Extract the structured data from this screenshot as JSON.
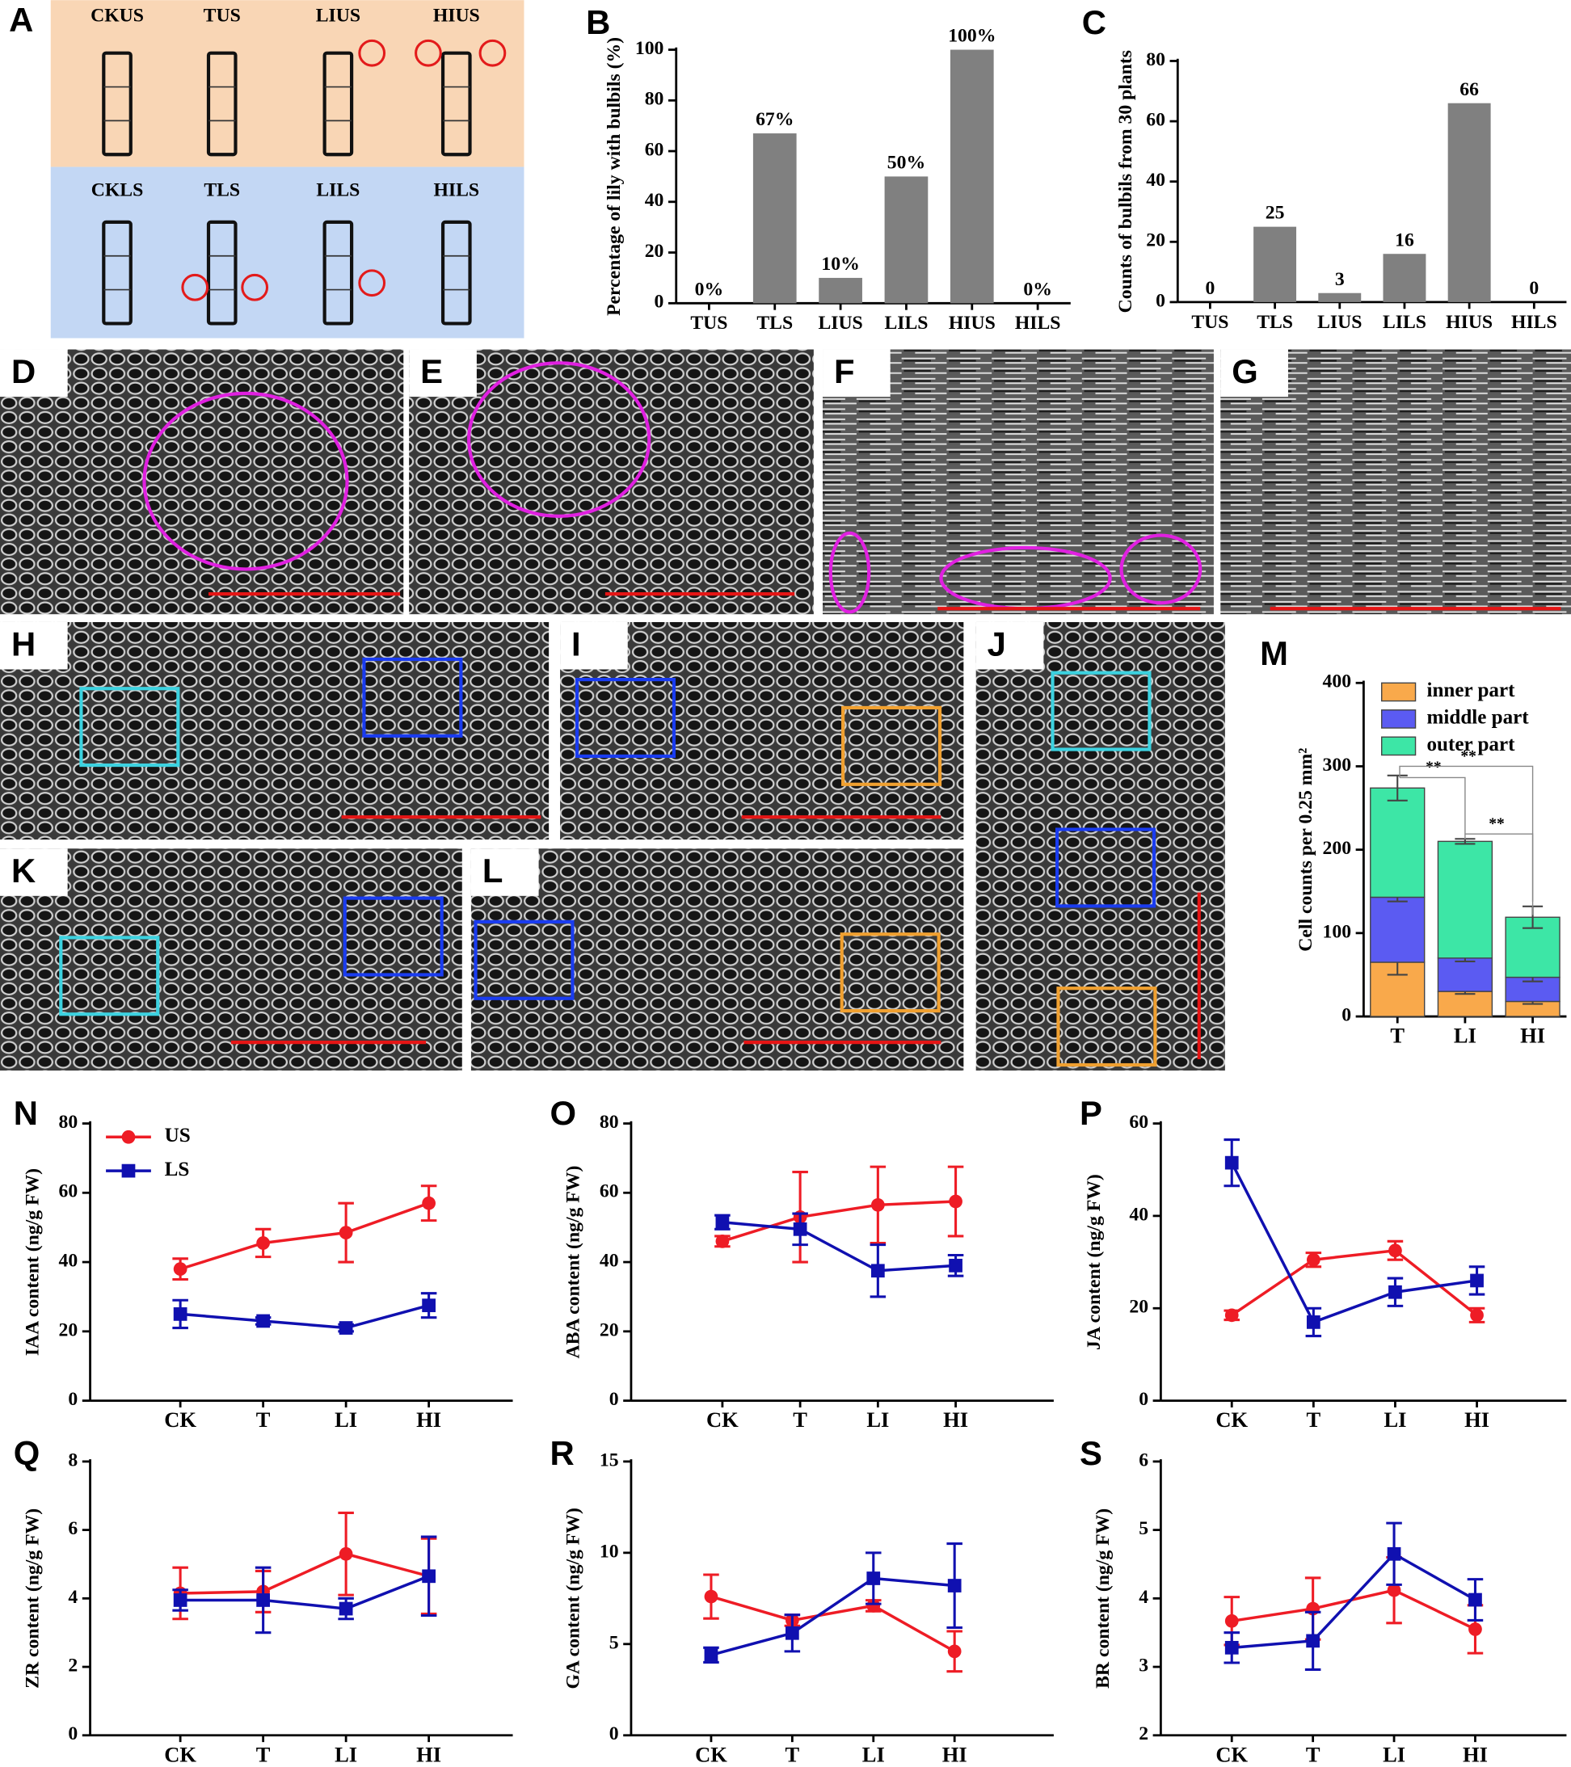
{
  "schematic": {
    "panel": "A",
    "upper": [
      "CKUS",
      "TUS",
      "LIUS",
      "HIUS"
    ],
    "lower": [
      "CKLS",
      "TLS",
      "LILS",
      "HILS"
    ]
  },
  "image_panels": [
    "D",
    "E",
    "F",
    "G",
    "H",
    "I",
    "J",
    "K",
    "L"
  ],
  "chart_data": [
    {
      "type": "bar",
      "panel": "B",
      "y_label": "Percentage of lily with bulbils (%)",
      "categories": [
        "TUS",
        "TLS",
        "LIUS",
        "LILS",
        "HIUS",
        "HILS"
      ],
      "values": [
        0,
        67,
        10,
        50,
        100,
        0
      ],
      "value_labels": [
        "0%",
        "67%",
        "10%",
        "50%",
        "100%",
        "0%"
      ],
      "color": "#808080",
      "ylim": [
        0,
        100
      ],
      "yticks": [
        0,
        20,
        40,
        60,
        80,
        100
      ]
    },
    {
      "type": "bar",
      "panel": "C",
      "y_label": "Counts of bulbils from 30 plants",
      "categories": [
        "TUS",
        "TLS",
        "LIUS",
        "LILS",
        "HIUS",
        "HILS"
      ],
      "values": [
        0,
        25,
        3,
        16,
        66,
        0
      ],
      "color": "#808080",
      "ylim": [
        0,
        80
      ],
      "yticks": [
        0,
        20,
        40,
        60,
        80
      ]
    },
    {
      "type": "stacked_bar",
      "panel": "M",
      "y_label": "Cell counts per 0.25 mm²",
      "categories": [
        "T",
        "LI",
        "HI"
      ],
      "series": [
        {
          "name": "inner part",
          "color": "#f9a94b",
          "values": [
            65,
            30,
            18
          ],
          "errors": [
            15,
            3,
            3
          ]
        },
        {
          "name": "middle part",
          "color": "#5b5bf2",
          "values": [
            78,
            40,
            29
          ],
          "errors": [
            5,
            4,
            5
          ]
        },
        {
          "name": "outer part",
          "color": "#3de6a6",
          "values": [
            131,
            140,
            72
          ],
          "errors": [
            15,
            3,
            13
          ]
        }
      ],
      "annotations": [
        "**",
        "**",
        "**"
      ],
      "legend": "top",
      "ylim": [
        0,
        400
      ],
      "yticks": [
        0,
        100,
        200,
        300,
        400
      ]
    },
    {
      "type": "line",
      "panel": "N",
      "y_label": "IAA content (ng/g FW)",
      "categories": [
        "CK",
        "T",
        "LI",
        "HI"
      ],
      "series": [
        {
          "name": "US",
          "color": "#ee1c25",
          "marker": "circle",
          "values": [
            38,
            45.5,
            48.5,
            57
          ],
          "errors": [
            3,
            4,
            8.5,
            5
          ]
        },
        {
          "name": "LS",
          "color": "#1010b0",
          "marker": "square",
          "values": [
            25,
            23,
            21,
            27.5
          ],
          "errors": [
            4,
            1,
            1,
            3.5
          ]
        }
      ],
      "legend": "top-left",
      "ylim": [
        0,
        80
      ],
      "yticks": [
        0,
        20,
        40,
        60,
        80
      ]
    },
    {
      "type": "line",
      "panel": "O",
      "y_label": "ABA content (ng/g FW)",
      "categories": [
        "CK",
        "T",
        "LI",
        "HI"
      ],
      "series": [
        {
          "color": "#ee1c25",
          "marker": "circle",
          "values": [
            46,
            53,
            56.5,
            57.5
          ],
          "errors": [
            1.5,
            13,
            11,
            10
          ]
        },
        {
          "color": "#1010b0",
          "marker": "square",
          "values": [
            51.5,
            49.5,
            37.5,
            39
          ],
          "errors": [
            2,
            4.5,
            7.5,
            3
          ]
        }
      ],
      "ylim": [
        0,
        80
      ],
      "yticks": [
        0,
        20,
        40,
        60,
        80
      ]
    },
    {
      "type": "line",
      "panel": "P",
      "y_label": "JA content (ng/g FW)",
      "categories": [
        "CK",
        "T",
        "LI",
        "HI"
      ],
      "series": [
        {
          "color": "#ee1c25",
          "marker": "circle",
          "values": [
            18.5,
            30.5,
            32.5,
            18.5
          ],
          "errors": [
            1,
            1.5,
            2,
            1.5
          ]
        },
        {
          "color": "#1010b0",
          "marker": "square",
          "values": [
            51.5,
            17,
            23.5,
            26
          ],
          "errors": [
            5,
            3,
            3,
            3
          ]
        }
      ],
      "ylim": [
        0,
        60
      ],
      "yticks": [
        0,
        20,
        40,
        60
      ]
    },
    {
      "type": "line",
      "panel": "Q",
      "y_label": "ZR content (ng/g FW)",
      "categories": [
        "CK",
        "T",
        "LI",
        "HI"
      ],
      "series": [
        {
          "color": "#ee1c25",
          "marker": "circle",
          "values": [
            4.15,
            4.2,
            5.3,
            4.65
          ],
          "errors": [
            0.75,
            0.6,
            1.2,
            1.1
          ]
        },
        {
          "color": "#1010b0",
          "marker": "square",
          "values": [
            3.95,
            3.95,
            3.7,
            4.65
          ],
          "errors": [
            0.3,
            0.95,
            0.3,
            1.15
          ]
        }
      ],
      "ylim": [
        0,
        8
      ],
      "yticks": [
        0,
        2,
        4,
        6,
        8
      ]
    },
    {
      "type": "line",
      "panel": "R",
      "y_label": "GA content (ng/g FW)",
      "categories": [
        "CK",
        "T",
        "LI",
        "HI"
      ],
      "series": [
        {
          "color": "#ee1c25",
          "marker": "circle",
          "values": [
            7.6,
            6.3,
            7.1,
            4.6
          ],
          "errors": [
            1.2,
            0.3,
            0.3,
            1.1
          ]
        },
        {
          "color": "#1010b0",
          "marker": "square",
          "values": [
            4.4,
            5.6,
            8.6,
            8.2
          ],
          "errors": [
            0.4,
            1,
            1.4,
            2.3
          ]
        }
      ],
      "ylim": [
        0,
        15
      ],
      "yticks": [
        0,
        5,
        10,
        15
      ]
    },
    {
      "type": "line",
      "panel": "S",
      "y_label": "BR content (ng/g FW)",
      "categories": [
        "CK",
        "T",
        "LI",
        "HI"
      ],
      "series": [
        {
          "color": "#ee1c25",
          "marker": "circle",
          "values": [
            3.67,
            3.85,
            4.12,
            3.55
          ],
          "errors": [
            0.35,
            0.45,
            0.48,
            0.35
          ]
        },
        {
          "color": "#1010b0",
          "marker": "square",
          "values": [
            3.28,
            3.38,
            4.65,
            3.98
          ],
          "errors": [
            0.22,
            0.42,
            0.45,
            0.3
          ]
        }
      ],
      "ylim": [
        2,
        6
      ],
      "yticks": [
        2,
        3,
        4,
        5,
        6
      ]
    }
  ]
}
